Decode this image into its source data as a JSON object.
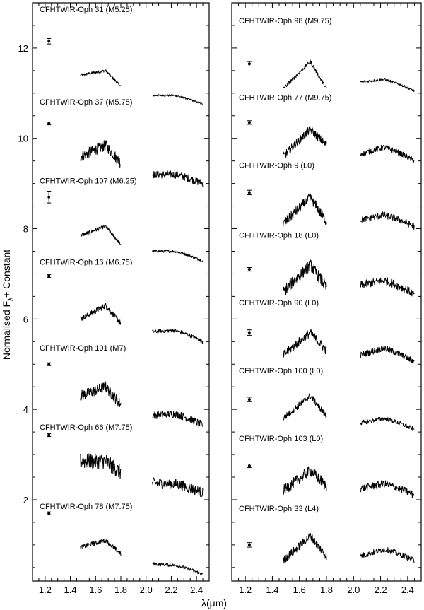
{
  "chart_data": {
    "type": "line",
    "description_free": true,
    "ylabel": "Normalised F",
    "ylabel_subscript": "λ",
    "ylabel_suffix": "+ Constant",
    "xlabel": "λ(μm)",
    "xlim": [
      1.1,
      2.5
    ],
    "ylim": [
      0.2,
      13.0
    ],
    "xticks": [
      1.2,
      1.4,
      1.6,
      1.8,
      2.0,
      2.2,
      2.4
    ],
    "xtick_labels": [
      "1.2",
      "1.4",
      "1.6",
      "1.8",
      "2.0",
      "2.2",
      "2.4"
    ],
    "yticks": [
      2,
      4,
      6,
      8,
      10,
      12
    ],
    "ytick_labels": [
      "2",
      "4",
      "6",
      "8",
      "10",
      "12"
    ],
    "panels": [
      {
        "name": "left",
        "spectra": [
          {
            "label": "CFHTWIR-Oph 31 (M5.25)",
            "label_y": 12.8,
            "err_x": 1.23,
            "err_y": 12.15,
            "err": 0.06,
            "h_level": 11.4,
            "h_peak": 11.5,
            "h_end": 11.15,
            "k_level": 10.95,
            "k_peak": 10.95,
            "k_end": 10.75,
            "noise": 0.03
          },
          {
            "label": "CFHTWIR-Oph 37 (M5.75)",
            "label_y": 10.75,
            "err_x": 1.23,
            "err_y": 10.33,
            "err": 0.02,
            "h_level": 9.6,
            "h_peak": 9.85,
            "h_end": 9.45,
            "k_level": 9.2,
            "k_peak": 9.2,
            "k_end": 9.0,
            "noise": 0.12
          },
          {
            "label": "CFHTWIR-Oph 107 (M6.25)",
            "label_y": 9.0,
            "err_x": 1.23,
            "err_y": 8.7,
            "err": 0.13,
            "h_level": 7.85,
            "h_peak": 8.05,
            "h_end": 7.65,
            "k_level": 7.5,
            "k_peak": 7.5,
            "k_end": 7.28,
            "noise": 0.04
          },
          {
            "label": "CFHTWIR-Oph 16 (M6.75)",
            "label_y": 7.2,
            "err_x": 1.23,
            "err_y": 6.95,
            "err": 0.02,
            "h_level": 6.0,
            "h_peak": 6.3,
            "h_end": 5.9,
            "k_level": 5.72,
            "k_peak": 5.75,
            "k_end": 5.5,
            "noise": 0.06
          },
          {
            "label": "CFHTWIR-Oph 101 (M7)",
            "label_y": 5.3,
            "err_x": 1.23,
            "err_y": 5.0,
            "err": 0.01,
            "h_level": 4.3,
            "h_peak": 4.5,
            "h_end": 4.1,
            "k_level": 3.87,
            "k_peak": 3.9,
            "k_end": 3.65,
            "noise": 0.12
          },
          {
            "label": "CFHTWIR-Oph 66 (M7.75)",
            "label_y": 3.55,
            "err_x": 1.23,
            "err_y": 3.43,
            "err": 0.03,
            "h_level": 2.85,
            "h_peak": 2.85,
            "h_end": 2.6,
            "k_level": 2.37,
            "k_peak": 2.35,
            "k_end": 2.15,
            "noise": 0.17
          },
          {
            "label": "CFHTWIR-Oph 78 (M7.75)",
            "label_y": 1.8,
            "err_x": 1.23,
            "err_y": 1.7,
            "err": 0.03,
            "h_level": 0.95,
            "h_peak": 1.1,
            "h_end": 0.8,
            "k_level": 0.58,
            "k_peak": 0.55,
            "k_end": 0.35,
            "noise": 0.05
          }
        ]
      },
      {
        "name": "right",
        "spectra": [
          {
            "label": "CFHTWIR-Oph 98 (M9.75)",
            "label_y": 12.55,
            "err_x": 1.23,
            "err_y": 11.65,
            "err": 0.05,
            "h_level": 11.1,
            "h_peak": 11.7,
            "h_end": 11.1,
            "k_level": 11.25,
            "k_peak": 11.3,
            "k_end": 11.05,
            "noise": 0.04
          },
          {
            "label": "CFHTWIR-Oph 77 (M9.75)",
            "label_y": 10.85,
            "err_x": 1.23,
            "err_y": 10.35,
            "err": 0.04,
            "h_level": 9.6,
            "h_peak": 10.2,
            "h_end": 9.85,
            "k_level": 9.65,
            "k_peak": 9.8,
            "k_end": 9.5,
            "noise": 0.09
          },
          {
            "label": "CFHTWIR-Oph 9 (L0)",
            "label_y": 9.35,
            "err_x": 1.23,
            "err_y": 8.8,
            "err": 0.05,
            "h_level": 8.1,
            "h_peak": 8.7,
            "h_end": 8.15,
            "k_level": 8.2,
            "k_peak": 8.3,
            "k_end": 8.05,
            "noise": 0.11
          },
          {
            "label": "CFHTWIR-Oph 18 (L0)",
            "label_y": 7.8,
            "err_x": 1.23,
            "err_y": 7.1,
            "err": 0.04,
            "h_level": 6.6,
            "h_peak": 7.2,
            "h_end": 6.7,
            "k_level": 6.75,
            "k_peak": 6.85,
            "k_end": 6.55,
            "noise": 0.13
          },
          {
            "label": "CFHTWIR-Oph 90 (L0)",
            "label_y": 6.3,
            "err_x": 1.23,
            "err_y": 5.7,
            "err": 0.06,
            "h_level": 5.2,
            "h_peak": 5.7,
            "h_end": 5.3,
            "k_level": 5.2,
            "k_peak": 5.35,
            "k_end": 5.05,
            "noise": 0.1
          },
          {
            "label": "CFHTWIR-Oph 100 (L0)",
            "label_y": 4.8,
            "err_x": 1.23,
            "err_y": 4.22,
            "err": 0.05,
            "h_level": 3.8,
            "h_peak": 4.3,
            "h_end": 3.85,
            "k_level": 3.7,
            "k_peak": 3.8,
            "k_end": 3.55,
            "noise": 0.07
          },
          {
            "label": "CFHTWIR-Oph 103 (L0)",
            "label_y": 3.3,
            "err_x": 1.23,
            "err_y": 2.75,
            "err": 0.04,
            "h_level": 2.2,
            "h_peak": 2.65,
            "h_end": 2.3,
            "k_level": 2.25,
            "k_peak": 2.35,
            "k_end": 2.1,
            "noise": 0.12
          },
          {
            "label": "CFHTWIR-Oph 33 (L4)",
            "label_y": 1.75,
            "err_x": 1.23,
            "err_y": 1.0,
            "err": 0.05,
            "h_level": 0.65,
            "h_peak": 1.2,
            "h_end": 0.75,
            "k_level": 0.75,
            "k_peak": 0.9,
            "k_end": 0.65,
            "noise": 0.09
          }
        ]
      }
    ]
  }
}
